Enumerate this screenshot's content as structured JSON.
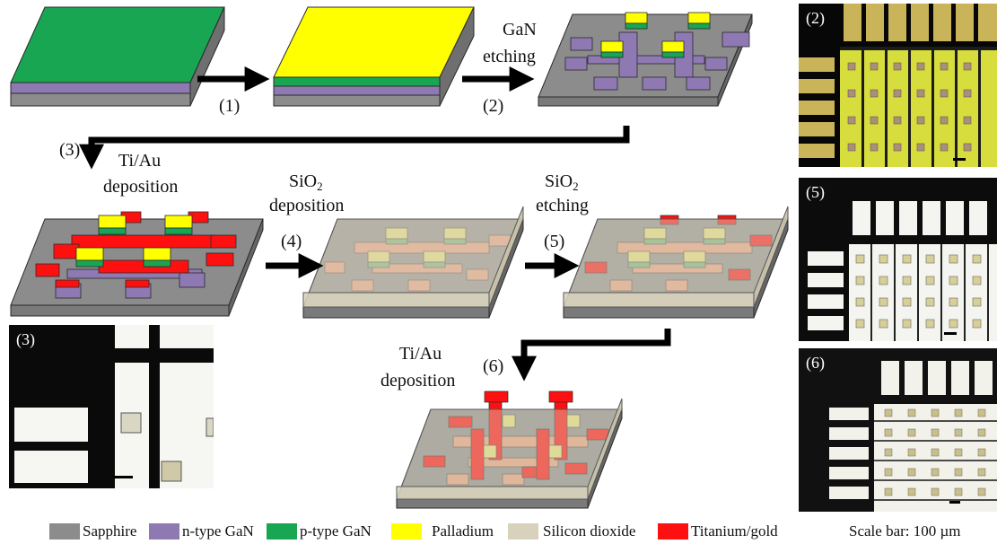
{
  "colors": {
    "sapphire": "#8c8c8c",
    "n_gan": "#8e79b3",
    "p_gan": "#18a653",
    "palladium": "#ffff00",
    "sio2": "#d8d2bd",
    "tiau": "#ff1010"
  },
  "labels": {
    "step1": "(1)",
    "gan_etching_1": "GaN",
    "gan_etching_2": "etching",
    "step2": "(2)",
    "step3": "(3)",
    "tiau_dep_1": "Ti/Au",
    "tiau_dep_2": "deposition",
    "sio2_dep_base": "SiO",
    "sio2_dep_sub": "2",
    "sio2_dep_2": "deposition",
    "step4": "(4)",
    "sio2_etch_base": "SiO",
    "sio2_etch_sub": "2",
    "sio2_etch_2": "etching",
    "step5": "(5)",
    "tiau_dep2_1": "Ti/Au",
    "tiau_dep2_2": "deposition",
    "step6": "(6)"
  },
  "photos": {
    "p2": "(2)",
    "p3": "(3)",
    "p5": "(5)",
    "p6": "(6)"
  },
  "legend": {
    "sapphire": "Sapphire",
    "n_gan": "n-type GaN",
    "p_gan": "p-type GaN",
    "palladium": "Palladium",
    "sio2": "Silicon dioxide",
    "tiau": "Titanium/gold",
    "scale": "Scale bar: 100 µm"
  }
}
